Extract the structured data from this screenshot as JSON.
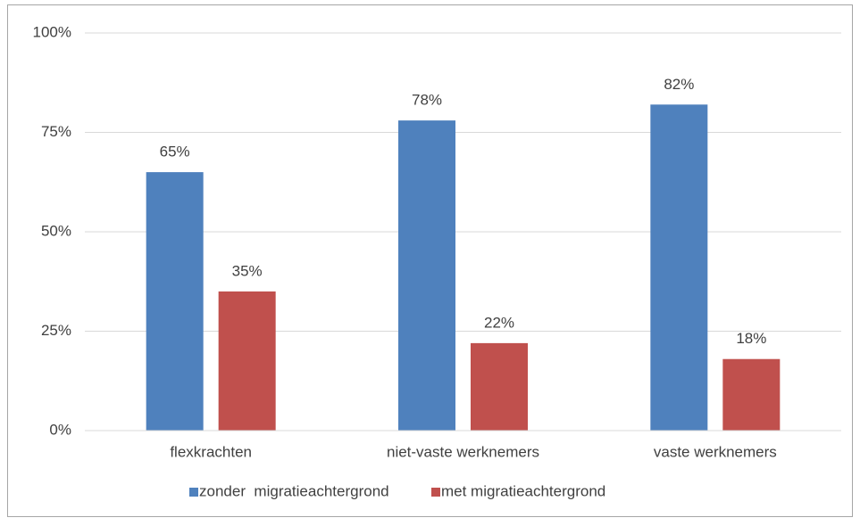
{
  "chart_data": {
    "type": "bar",
    "categories": [
      "flexkrachten",
      "niet-vaste werknemers",
      "vaste werknemers"
    ],
    "series": [
      {
        "name": "zonder  migratieachtergrond",
        "color": "#4f81bd",
        "values": [
          65,
          78,
          82
        ],
        "value_labels": [
          "65%",
          "78%",
          "82%"
        ]
      },
      {
        "name": "met migratieachtergrond",
        "color": "#c0504d",
        "values": [
          35,
          22,
          18
        ],
        "value_labels": [
          "35%",
          "22%",
          "18%"
        ]
      }
    ],
    "ylim": [
      0,
      100
    ],
    "yticks": [
      {
        "value": 0,
        "label": "0%"
      },
      {
        "value": 25,
        "label": "25%"
      },
      {
        "value": 50,
        "label": "50%"
      },
      {
        "value": 75,
        "label": "75%"
      },
      {
        "value": 100,
        "label": "100%"
      }
    ],
    "grid": true,
    "legend": "bottom"
  }
}
